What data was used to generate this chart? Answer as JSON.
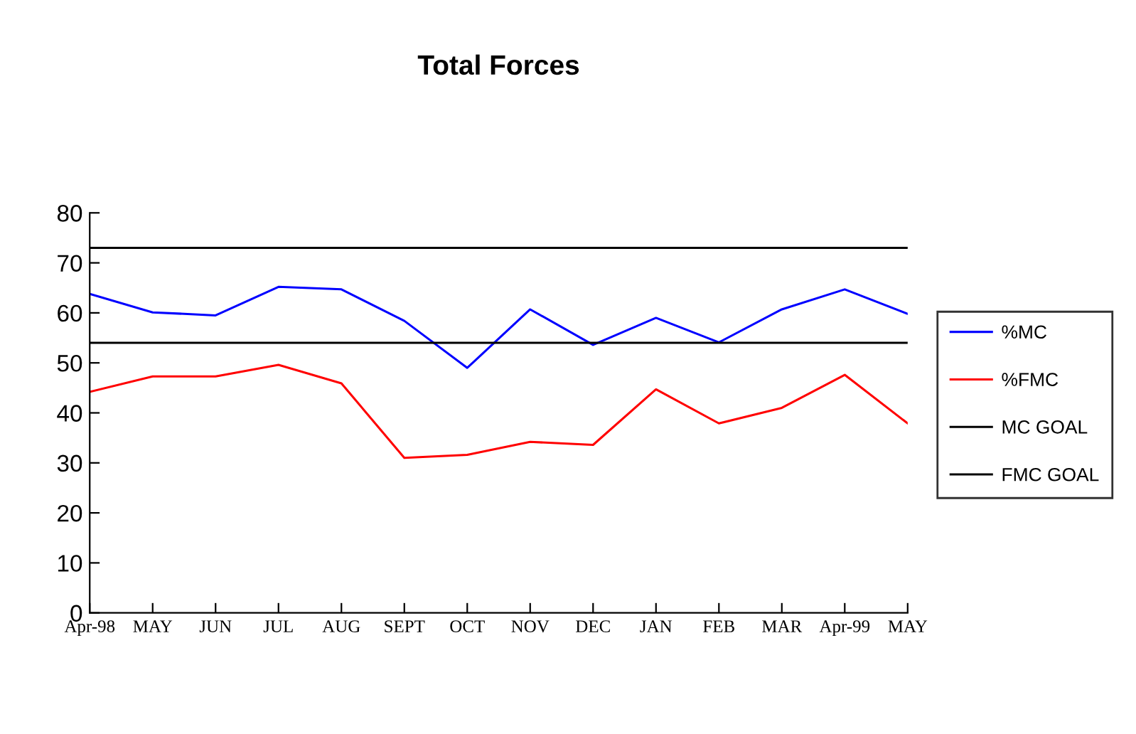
{
  "chart_data": {
    "type": "line",
    "title": "Total Forces",
    "categories": [
      "Apr-98",
      "MAY",
      "JUN",
      "JUL",
      "AUG",
      "SEPT",
      "OCT",
      "NOV",
      "DEC",
      "JAN",
      "FEB",
      "MAR",
      "Apr-99",
      "MAY"
    ],
    "series": [
      {
        "name": "%MC",
        "color": "#0000ff",
        "values": [
          63.8,
          60.1,
          59.5,
          65.2,
          64.7,
          58.4,
          49.0,
          60.7,
          53.6,
          59.0,
          54.1,
          60.7,
          64.7,
          59.8
        ]
      },
      {
        "name": "%FMC",
        "color": "#ff0000",
        "values": [
          44.2,
          47.3,
          47.3,
          49.6,
          45.9,
          31.0,
          31.6,
          34.2,
          33.6,
          44.7,
          37.9,
          41.0,
          47.6,
          37.9
        ]
      },
      {
        "name": "MC GOAL",
        "color": "#000000",
        "values": [
          73,
          73,
          73,
          73,
          73,
          73,
          73,
          73,
          73,
          73,
          73,
          73,
          73,
          73
        ]
      },
      {
        "name": "FMC GOAL",
        "color": "#000000",
        "values": [
          54,
          54,
          54,
          54,
          54,
          54,
          54,
          54,
          54,
          54,
          54,
          54,
          54,
          54
        ]
      }
    ],
    "ylim": [
      0,
      80
    ],
    "yticks": [
      0,
      10,
      20,
      30,
      40,
      50,
      60,
      70,
      80
    ],
    "grid": false,
    "legend": "right",
    "marker": "none",
    "line_style": "solid"
  }
}
